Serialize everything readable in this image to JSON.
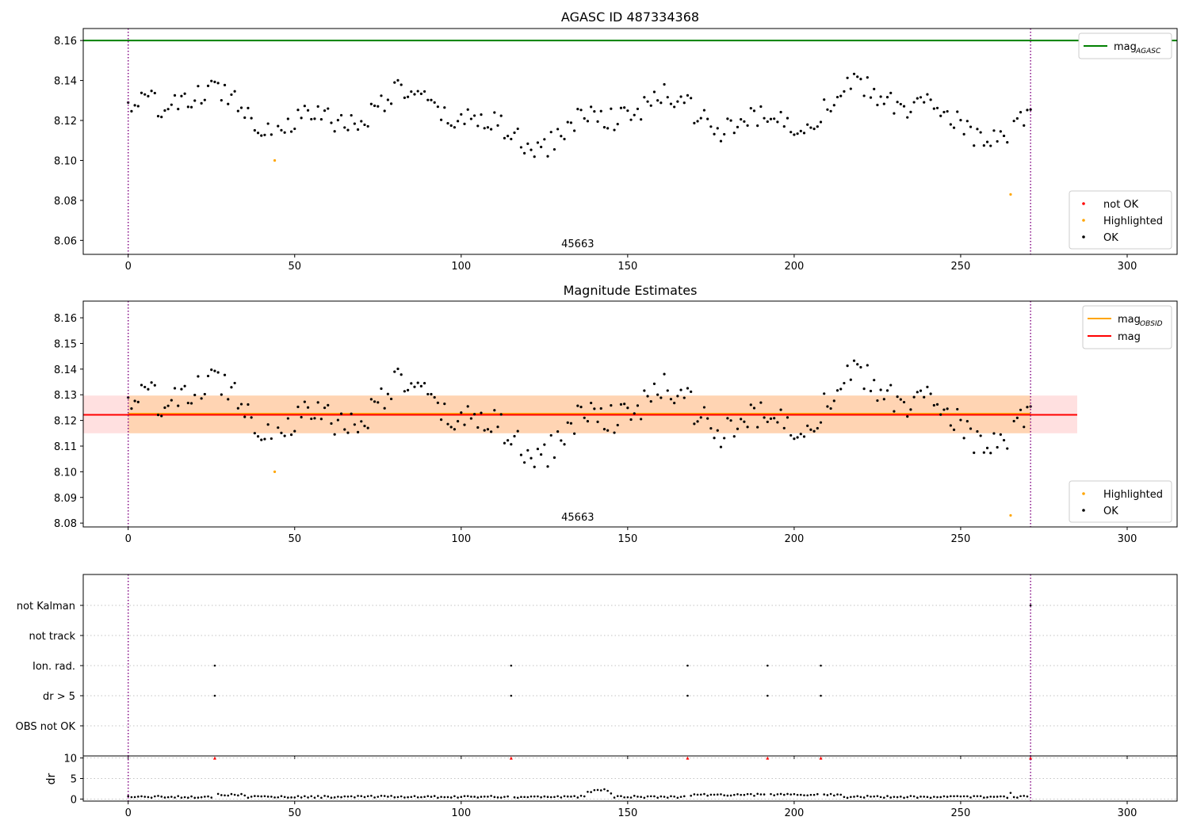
{
  "chart_data": [
    {
      "type": "scatter",
      "title": "AGASC ID 487334368",
      "xlabel": "",
      "ylabel": "",
      "xlim": [
        -13.5,
        315
      ],
      "ylim": [
        8.053,
        8.166
      ],
      "xticks": [
        0,
        50,
        100,
        150,
        200,
        250,
        300
      ],
      "xtick_labels": [
        "0",
        "50",
        "100",
        "150",
        "200",
        "250",
        "300"
      ],
      "yticks": [
        8.06,
        8.08,
        8.1,
        8.12,
        8.14,
        8.16
      ],
      "ytick_labels": [
        "8.06",
        "8.08",
        "8.10",
        "8.12",
        "8.14",
        "8.16"
      ],
      "obsid_boundaries": [
        0,
        271
      ],
      "obsid_label": "45663",
      "obsid_label_x": 135,
      "mag_agasc": 8.16,
      "highlighted": [
        {
          "x": 44,
          "y": 8.1
        },
        {
          "x": 265,
          "y": 8.083
        }
      ],
      "legend_lines": [
        {
          "text": "mag",
          "sub": "AGASC",
          "color": "#008000"
        }
      ],
      "legend_points": [
        {
          "text": "not OK",
          "color": "#ff0000"
        },
        {
          "text": "Highlighted",
          "color": "#ffa500"
        },
        {
          "text": "OK",
          "color": "#000000"
        }
      ],
      "legend_lines_loc": "upper right",
      "legend_points_loc": "lower right"
    },
    {
      "type": "scatter",
      "title": "Magnitude Estimates",
      "xlabel": "",
      "ylabel": "",
      "xlim": [
        -13.5,
        315
      ],
      "ylim": [
        8.0785,
        8.1665
      ],
      "xticks": [
        0,
        50,
        100,
        150,
        200,
        250,
        300
      ],
      "xtick_labels": [
        "0",
        "50",
        "100",
        "150",
        "200",
        "250",
        "300"
      ],
      "yticks": [
        8.08,
        8.09,
        8.1,
        8.11,
        8.12,
        8.13,
        8.14,
        8.15,
        8.16
      ],
      "ytick_labels": [
        "8.08",
        "8.09",
        "8.10",
        "8.11",
        "8.12",
        "8.13",
        "8.14",
        "8.15",
        "8.16"
      ],
      "obsid_boundaries": [
        0,
        271
      ],
      "obsid_label": "45663",
      "obsid_label_x": 135,
      "mag": 8.1222,
      "mag_obsid": 8.1226,
      "mag_band": [
        -13.5,
        285,
        8.115,
        8.1297
      ],
      "mag_obsid_band": [
        0,
        271,
        8.115,
        8.1297
      ],
      "highlighted": [
        {
          "x": 44,
          "y": 8.1
        },
        {
          "x": 265,
          "y": 8.083
        }
      ],
      "legend_lines": [
        {
          "text": "mag",
          "sub": "OBSID",
          "color": "#ffa500"
        },
        {
          "text": "mag",
          "sub": "",
          "color": "#ff0000"
        }
      ],
      "legend_points": [
        {
          "text": "Highlighted",
          "color": "#ffa500"
        },
        {
          "text": "OK",
          "color": "#000000"
        }
      ],
      "legend_lines_loc": "upper right",
      "legend_points_loc": "lower right"
    },
    {
      "type": "scatter",
      "title": "",
      "xlim": [
        -13.5,
        315
      ],
      "categories": [
        "not Kalman",
        "not track",
        "Ion. rad.",
        "dr > 5",
        "OBS not OK"
      ],
      "flags": {
        "not Kalman": [
          271
        ],
        "not track": [],
        "Ion. rad.": [
          26,
          115,
          168,
          192,
          208
        ],
        "dr > 5": [
          26,
          115,
          168,
          192,
          208
        ],
        "OBS not OK": []
      },
      "obsid_boundaries": [
        0,
        271
      ]
    },
    {
      "type": "scatter",
      "title": "",
      "xlabel": "",
      "ylabel": "dr",
      "xlim": [
        -13.5,
        315
      ],
      "ylim": [
        -0.5,
        10.5
      ],
      "xticks": [
        0,
        50,
        100,
        150,
        200,
        250,
        300
      ],
      "xtick_labels": [
        "0",
        "50",
        "100",
        "150",
        "200",
        "250",
        "300"
      ],
      "yticks": [
        0,
        5,
        10
      ],
      "ytick_labels": [
        "0",
        "5",
        "10"
      ],
      "clipped_at_10": [
        26,
        115,
        168,
        192,
        208,
        271
      ],
      "obsid_boundaries": [
        0,
        271
      ]
    }
  ]
}
